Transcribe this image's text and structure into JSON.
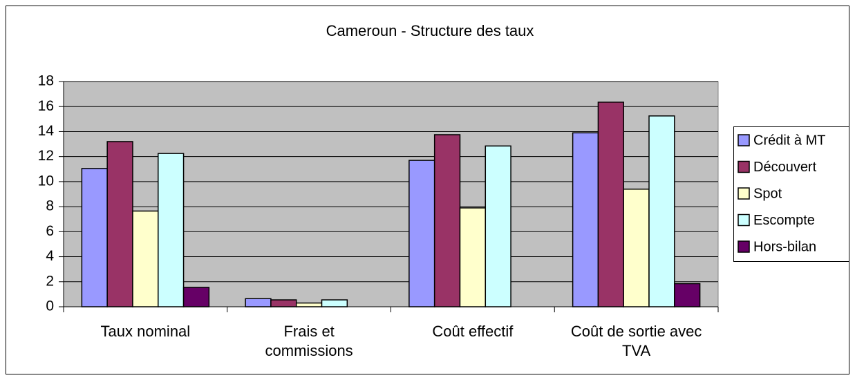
{
  "chart_data": {
    "type": "bar",
    "title": "Cameroun - Structure des taux",
    "categories": [
      "Taux nominal",
      "Frais et commissions",
      "Coût effectif",
      "Coût de sortie avec TVA"
    ],
    "series": [
      {
        "name": "Crédit à MT",
        "color": "#9999ff",
        "values": [
          11.05,
          0.65,
          11.7,
          13.9
        ]
      },
      {
        "name": "Découvert",
        "color": "#993366",
        "values": [
          13.2,
          0.55,
          13.75,
          16.35
        ]
      },
      {
        "name": "Spot",
        "color": "#ffffcc",
        "values": [
          7.65,
          0.3,
          7.9,
          9.4
        ]
      },
      {
        "name": "Escompte",
        "color": "#ccffff",
        "values": [
          12.25,
          0.55,
          12.85,
          15.25
        ]
      },
      {
        "name": "Hors-bilan",
        "color": "#660066",
        "values": [
          1.55,
          null,
          null,
          1.85
        ]
      }
    ],
    "ylim": [
      0,
      18
    ],
    "yticks": [
      0,
      2,
      4,
      6,
      8,
      10,
      12,
      14,
      16,
      18
    ],
    "grid": true,
    "legend": "right"
  }
}
